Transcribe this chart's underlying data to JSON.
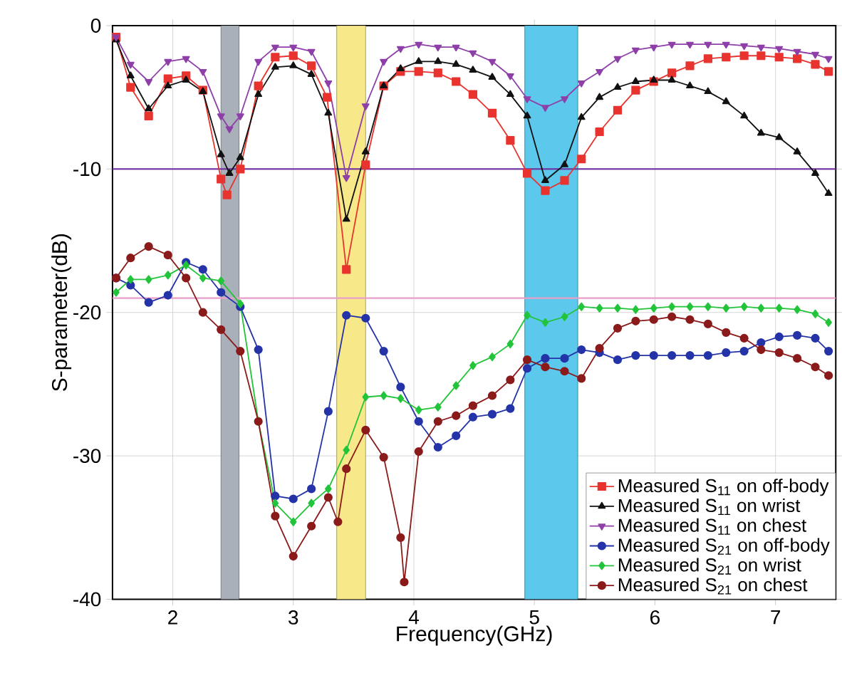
{
  "chart_data": {
    "type": "line",
    "xlabel": "Frequency(GHz)",
    "ylabel": "S-parameter(dB)",
    "xlim": [
      1.5,
      7.5
    ],
    "ylim": [
      -40,
      0
    ],
    "xticks": [
      2,
      3,
      4,
      5,
      6,
      7
    ],
    "yticks": [
      -40,
      -30,
      -20,
      -10,
      0
    ],
    "grid": true,
    "legend": "bottom right",
    "line_style": "solid",
    "bands": [
      {
        "axis": "x",
        "from": 2.4,
        "to": 2.55,
        "color": "#a9b0ba"
      },
      {
        "axis": "x",
        "from": 3.36,
        "to": 3.6,
        "color": "#f7e98a"
      },
      {
        "axis": "x",
        "from": 4.92,
        "to": 5.36,
        "color": "#5bc8ec"
      }
    ],
    "ref_lines": [
      {
        "axis": "y",
        "value": -10,
        "color": "#7030a0"
      },
      {
        "axis": "y",
        "value": -19,
        "color": "#e8a0c8"
      }
    ],
    "series": [
      {
        "name": "Measured S$_{11}$ on off-body",
        "color": "#e8332e",
        "marker": "square",
        "x": [
          1.53,
          1.65,
          1.8,
          1.96,
          2.11,
          2.25,
          2.4,
          2.45,
          2.56,
          2.71,
          2.85,
          3.0,
          3.15,
          3.28,
          3.44,
          3.6,
          3.75,
          3.89,
          4.04,
          4.2,
          4.35,
          4.49,
          4.65,
          4.8,
          4.94,
          5.09,
          5.25,
          5.39,
          5.54,
          5.69,
          5.84,
          5.99,
          6.14,
          6.29,
          6.44,
          6.59,
          6.74,
          6.88,
          7.03,
          7.18,
          7.33,
          7.44
        ],
        "values": [
          -0.8,
          -4.3,
          -6.3,
          -3.7,
          -3.5,
          -4.5,
          -10.7,
          -11.8,
          -10,
          -4.2,
          -2.2,
          -2.1,
          -2.8,
          -5,
          -17,
          -9.7,
          -4.2,
          -3.2,
          -3.2,
          -3.3,
          -3.9,
          -4.8,
          -6.1,
          -8,
          -10.3,
          -11.5,
          -10.8,
          -9.3,
          -7.4,
          -5.9,
          -4.5,
          -3.9,
          -3.3,
          -2.8,
          -2.3,
          -2.2,
          -2.1,
          -2.1,
          -2.2,
          -2.3,
          -2.7,
          -3.2
        ]
      },
      {
        "name": "Measured S$_{11}$ on wrist",
        "color": "#111111",
        "marker": "triangle",
        "x": [
          1.53,
          1.65,
          1.8,
          1.96,
          2.11,
          2.25,
          2.4,
          2.47,
          2.56,
          2.71,
          2.85,
          3.0,
          3.15,
          3.29,
          3.44,
          3.6,
          3.75,
          3.89,
          4.04,
          4.2,
          4.35,
          4.49,
          4.65,
          4.8,
          4.94,
          5.09,
          5.25,
          5.39,
          5.54,
          5.69,
          5.84,
          5.99,
          6.14,
          6.29,
          6.44,
          6.59,
          6.74,
          6.88,
          7.03,
          7.18,
          7.33,
          7.44
        ],
        "values": [
          -1,
          -3.5,
          -5.8,
          -4.2,
          -3.8,
          -4.6,
          -9,
          -10.3,
          -9.2,
          -4.8,
          -2.9,
          -2.8,
          -3.4,
          -6.1,
          -13.5,
          -8.8,
          -4.2,
          -3,
          -2.5,
          -2.5,
          -2.7,
          -3.1,
          -3.6,
          -4.8,
          -6.3,
          -10.8,
          -9.7,
          -6.4,
          -5,
          -4.3,
          -3.9,
          -3.8,
          -3.8,
          -4.2,
          -4.6,
          -5.3,
          -6.3,
          -7.5,
          -7.8,
          -8.8,
          -10.3,
          -11.7
        ]
      },
      {
        "name": "Measured S$_{11}$ on chest",
        "color": "#8e3fa8",
        "marker": "triangle-down",
        "x": [
          1.53,
          1.65,
          1.8,
          1.96,
          2.11,
          2.25,
          2.4,
          2.47,
          2.56,
          2.71,
          2.85,
          3.0,
          3.15,
          3.29,
          3.44,
          3.6,
          3.75,
          3.89,
          4.04,
          4.2,
          4.35,
          4.49,
          4.65,
          4.8,
          4.94,
          5.09,
          5.25,
          5.39,
          5.54,
          5.69,
          5.84,
          5.99,
          6.14,
          6.29,
          6.44,
          6.59,
          6.74,
          6.88,
          7.03,
          7.18,
          7.33,
          7.44
        ],
        "values": [
          -0.8,
          -2.7,
          -3.9,
          -2.5,
          -2.3,
          -3.2,
          -6.3,
          -7.2,
          -6.3,
          -2.5,
          -1.5,
          -1.5,
          -1.8,
          -4,
          -10.6,
          -5.6,
          -2.5,
          -1.6,
          -1.3,
          -1.5,
          -1.5,
          -1.9,
          -2.5,
          -3.5,
          -5.1,
          -5.7,
          -5.1,
          -4,
          -3.2,
          -2.3,
          -1.7,
          -1.5,
          -1.3,
          -1.3,
          -1.3,
          -1.3,
          -1.4,
          -1.5,
          -1.6,
          -1.8,
          -2,
          -2.3
        ]
      },
      {
        "name": "Measured S$_{21}$ on off-body",
        "color": "#2433a8",
        "marker": "circle",
        "x": [
          1.53,
          1.65,
          1.8,
          1.96,
          2.11,
          2.25,
          2.4,
          2.56,
          2.71,
          2.85,
          3.0,
          3.15,
          3.29,
          3.44,
          3.6,
          3.75,
          3.89,
          4.04,
          4.2,
          4.35,
          4.49,
          4.65,
          4.8,
          4.94,
          5.09,
          5.25,
          5.39,
          5.54,
          5.69,
          5.84,
          5.99,
          6.14,
          6.29,
          6.44,
          6.59,
          6.74,
          6.88,
          7.03,
          7.18,
          7.33,
          7.44
        ],
        "values": [
          -17.6,
          -18.1,
          -19.3,
          -18.8,
          -16.5,
          -17,
          -18.6,
          -19.6,
          -22.6,
          -32.8,
          -33,
          -32.3,
          -26.9,
          -20.2,
          -20.4,
          -22.7,
          -25.2,
          -27.6,
          -29.4,
          -28.6,
          -27.3,
          -27.1,
          -26.7,
          -23.9,
          -23.2,
          -23.2,
          -22.6,
          -22.8,
          -23.3,
          -23,
          -23,
          -23,
          -23,
          -23,
          -22.8,
          -22.7,
          -22.1,
          -21.7,
          -21.6,
          -21.8,
          -22.7
        ]
      },
      {
        "name": "Measured S$_{21}$ on wrist",
        "color": "#22c43a",
        "marker": "diamond",
        "x": [
          1.53,
          1.65,
          1.8,
          1.96,
          2.11,
          2.25,
          2.4,
          2.56,
          2.71,
          2.85,
          3.0,
          3.15,
          3.29,
          3.44,
          3.6,
          3.75,
          3.89,
          4.04,
          4.2,
          4.35,
          4.49,
          4.65,
          4.8,
          4.94,
          5.09,
          5.25,
          5.39,
          5.54,
          5.69,
          5.84,
          5.99,
          6.14,
          6.29,
          6.44,
          6.59,
          6.74,
          6.88,
          7.03,
          7.18,
          7.33,
          7.44
        ],
        "values": [
          -18.6,
          -17.7,
          -17.7,
          -17.4,
          -16.7,
          -17.6,
          -17.8,
          -19.4,
          -27.6,
          -33.3,
          -34.6,
          -33.3,
          -32.3,
          -29.6,
          -25.9,
          -25.8,
          -26,
          -26.8,
          -26.6,
          -25.1,
          -23.7,
          -23.1,
          -22.2,
          -20.2,
          -20.7,
          -20.3,
          -19.6,
          -19.7,
          -19.7,
          -19.8,
          -19.7,
          -19.6,
          -19.6,
          -19.6,
          -19.7,
          -19.6,
          -19.7,
          -19.7,
          -19.8,
          -20.1,
          -20.7
        ]
      },
      {
        "name": "Measured S$_{21}$ on chest",
        "color": "#8b1a1a",
        "marker": "circle",
        "x": [
          1.53,
          1.65,
          1.8,
          1.96,
          2.11,
          2.25,
          2.4,
          2.56,
          2.71,
          2.85,
          3.0,
          3.15,
          3.29,
          3.37,
          3.44,
          3.6,
          3.75,
          3.89,
          3.92,
          4.04,
          4.2,
          4.35,
          4.49,
          4.65,
          4.8,
          4.94,
          5.09,
          5.25,
          5.39,
          5.54,
          5.69,
          5.84,
          5.99,
          6.14,
          6.29,
          6.44,
          6.59,
          6.74,
          6.88,
          7.03,
          7.18,
          7.33,
          7.44
        ],
        "values": [
          -17.6,
          -16.2,
          -15.4,
          -16,
          -17.6,
          -20,
          -21.2,
          -22.7,
          -27.6,
          -34.2,
          -37,
          -34.9,
          -32.9,
          -34.6,
          -30.9,
          -28.2,
          -30.1,
          -35.7,
          -38.8,
          -29.7,
          -27.6,
          -27.2,
          -26.5,
          -25.8,
          -24.7,
          -23.3,
          -23.8,
          -24.1,
          -24.6,
          -22.5,
          -21.1,
          -20.6,
          -20.5,
          -20.3,
          -20.5,
          -20.8,
          -21.4,
          -21.8,
          -22.6,
          -22.8,
          -23.2,
          -23.8,
          -24.4
        ]
      }
    ]
  }
}
